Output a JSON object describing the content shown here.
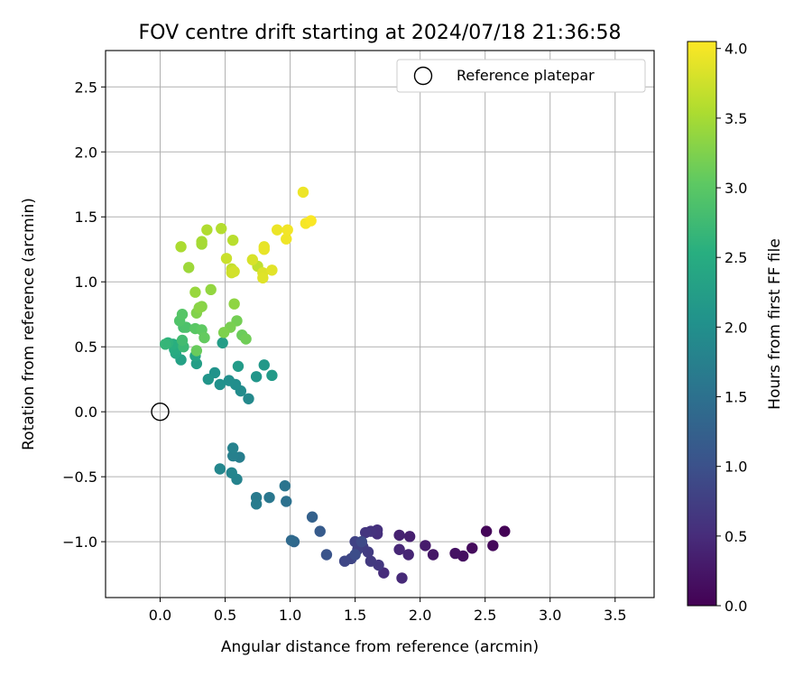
{
  "chart_data": {
    "type": "scatter",
    "title": "FOV centre drift starting at 2024/07/18 21:36:58",
    "xlabel": "Angular distance from reference (arcmin)",
    "ylabel": "Rotation from reference (arcmin)",
    "xlim": [
      -0.42,
      3.8
    ],
    "ylim": [
      -1.43,
      2.78
    ],
    "xticks": [
      0.0,
      0.5,
      1.0,
      1.5,
      2.0,
      2.5,
      3.0,
      3.5
    ],
    "xtick_labels": [
      "0.0",
      "0.5",
      "1.0",
      "1.5",
      "2.0",
      "2.5",
      "3.0",
      "3.5"
    ],
    "yticks": [
      -1.0,
      -0.5,
      0.0,
      0.5,
      1.0,
      1.5,
      2.0,
      2.5
    ],
    "ytick_labels": [
      "−1.0",
      "−0.5",
      "0.0",
      "0.5",
      "1.0",
      "1.5",
      "2.0",
      "2.5"
    ],
    "grid": true,
    "legend": {
      "position": "top-right",
      "entries": [
        {
          "label": "Reference platepar",
          "marker": "open-circle"
        }
      ]
    },
    "reference": {
      "x": 0.0,
      "y": 0.0
    },
    "colorbar": {
      "label": "Hours from first FF file",
      "colormap": "viridis",
      "range": [
        0.0,
        4.05
      ],
      "ticks": [
        0.0,
        0.5,
        1.0,
        1.5,
        2.0,
        2.5,
        3.0,
        3.5,
        4.0
      ],
      "tick_labels": [
        "0.0",
        "0.5",
        "1.0",
        "1.5",
        "2.0",
        "2.5",
        "3.0",
        "3.5",
        "4.0"
      ]
    },
    "series": [
      {
        "points": [
          [
            2.65,
            -0.92,
            0.02
          ],
          [
            2.51,
            -0.92,
            0.05
          ],
          [
            2.56,
            -1.03,
            0.08
          ],
          [
            2.4,
            -1.05,
            0.12
          ],
          [
            2.33,
            -1.11,
            0.16
          ],
          [
            2.27,
            -1.09,
            0.2
          ],
          [
            2.1,
            -1.1,
            0.25
          ],
          [
            2.04,
            -1.03,
            0.3
          ],
          [
            1.92,
            -0.96,
            0.35
          ],
          [
            1.84,
            -0.95,
            0.38
          ],
          [
            1.91,
            -1.1,
            0.41
          ],
          [
            1.84,
            -1.06,
            0.44
          ],
          [
            1.86,
            -1.28,
            0.47
          ],
          [
            1.72,
            -1.24,
            0.5
          ],
          [
            1.67,
            -0.94,
            0.53
          ],
          [
            1.67,
            -0.91,
            0.56
          ],
          [
            1.62,
            -0.92,
            0.59
          ],
          [
            1.58,
            -0.93,
            0.62
          ],
          [
            1.68,
            -1.18,
            0.65
          ],
          [
            1.62,
            -1.15,
            0.68
          ],
          [
            1.6,
            -1.08,
            0.7
          ],
          [
            1.56,
            -1.04,
            0.73
          ],
          [
            1.52,
            -1.06,
            0.76
          ],
          [
            1.5,
            -1.0,
            0.8
          ],
          [
            1.47,
            -1.13,
            0.83
          ],
          [
            1.42,
            -1.15,
            0.86
          ],
          [
            1.55,
            -1.0,
            0.9
          ],
          [
            1.5,
            -1.1,
            0.95
          ],
          [
            1.28,
            -1.1,
            1.05
          ],
          [
            1.23,
            -0.92,
            1.15
          ],
          [
            1.17,
            -0.81,
            1.25
          ],
          [
            1.03,
            -1.0,
            1.35
          ],
          [
            1.01,
            -0.99,
            1.4
          ],
          [
            0.97,
            -0.69,
            1.5
          ],
          [
            0.96,
            -0.57,
            1.55
          ],
          [
            0.84,
            -0.66,
            1.6
          ],
          [
            0.74,
            -0.66,
            1.65
          ],
          [
            0.74,
            -0.71,
            1.68
          ],
          [
            0.61,
            -0.35,
            1.72
          ],
          [
            0.56,
            -0.34,
            1.75
          ],
          [
            0.56,
            -0.28,
            1.78
          ],
          [
            0.59,
            -0.52,
            1.8
          ],
          [
            0.55,
            -0.47,
            1.83
          ],
          [
            0.46,
            -0.44,
            1.86
          ],
          [
            0.68,
            0.1,
            1.9
          ],
          [
            0.62,
            0.16,
            1.94
          ],
          [
            0.58,
            0.21,
            1.97
          ],
          [
            0.53,
            0.24,
            2.0
          ],
          [
            0.46,
            0.21,
            2.03
          ],
          [
            0.42,
            0.3,
            2.06
          ],
          [
            0.37,
            0.25,
            2.09
          ],
          [
            0.74,
            0.27,
            2.12
          ],
          [
            0.8,
            0.36,
            2.15
          ],
          [
            0.86,
            0.28,
            2.18
          ],
          [
            0.6,
            0.35,
            2.2
          ],
          [
            0.48,
            0.53,
            2.23
          ],
          [
            0.28,
            0.37,
            2.26
          ],
          [
            0.16,
            0.4,
            2.3
          ],
          [
            0.27,
            0.43,
            2.36
          ],
          [
            0.12,
            0.45,
            2.42
          ],
          [
            0.11,
            0.48,
            2.48
          ],
          [
            0.1,
            0.52,
            2.54
          ],
          [
            0.06,
            0.53,
            2.6
          ],
          [
            0.04,
            0.52,
            2.66
          ],
          [
            0.18,
            0.5,
            2.72
          ],
          [
            0.17,
            0.55,
            2.78
          ],
          [
            0.18,
            0.65,
            2.84
          ],
          [
            0.2,
            0.65,
            2.88
          ],
          [
            0.15,
            0.7,
            2.92
          ],
          [
            0.17,
            0.75,
            2.96
          ],
          [
            0.27,
            0.64,
            3.0
          ],
          [
            0.32,
            0.63,
            3.04
          ],
          [
            0.34,
            0.57,
            3.07
          ],
          [
            0.28,
            0.47,
            3.1
          ],
          [
            0.63,
            0.59,
            3.12
          ],
          [
            0.66,
            0.56,
            3.15
          ],
          [
            0.59,
            0.7,
            3.18
          ],
          [
            0.54,
            0.65,
            3.21
          ],
          [
            0.49,
            0.61,
            3.24
          ],
          [
            0.28,
            0.76,
            3.27
          ],
          [
            0.32,
            0.81,
            3.3
          ],
          [
            0.3,
            0.8,
            3.32
          ],
          [
            0.57,
            0.83,
            3.35
          ],
          [
            0.39,
            0.94,
            3.38
          ],
          [
            0.27,
            0.92,
            3.41
          ],
          [
            0.22,
            1.11,
            3.44
          ],
          [
            0.32,
            1.29,
            3.47
          ],
          [
            0.32,
            1.31,
            3.5
          ],
          [
            0.16,
            1.27,
            3.53
          ],
          [
            0.36,
            1.4,
            3.56
          ],
          [
            0.47,
            1.41,
            3.59
          ],
          [
            0.56,
            1.32,
            3.62
          ],
          [
            0.75,
            1.12,
            3.66
          ],
          [
            0.55,
            1.1,
            3.69
          ],
          [
            0.51,
            1.18,
            3.72
          ],
          [
            0.55,
            1.07,
            3.75
          ],
          [
            0.57,
            1.08,
            3.78
          ],
          [
            0.71,
            1.17,
            3.81
          ],
          [
            0.79,
            1.07,
            3.84
          ],
          [
            0.79,
            1.03,
            3.86
          ],
          [
            0.86,
            1.09,
            3.88
          ],
          [
            0.8,
            1.27,
            3.9
          ],
          [
            0.8,
            1.25,
            3.92
          ],
          [
            0.9,
            1.4,
            3.94
          ],
          [
            0.97,
            1.33,
            3.96
          ],
          [
            0.98,
            1.4,
            3.98
          ],
          [
            1.1,
            1.69,
            3.95
          ],
          [
            1.12,
            1.45,
            4.0
          ],
          [
            1.16,
            1.47,
            4.03
          ]
        ]
      }
    ]
  }
}
